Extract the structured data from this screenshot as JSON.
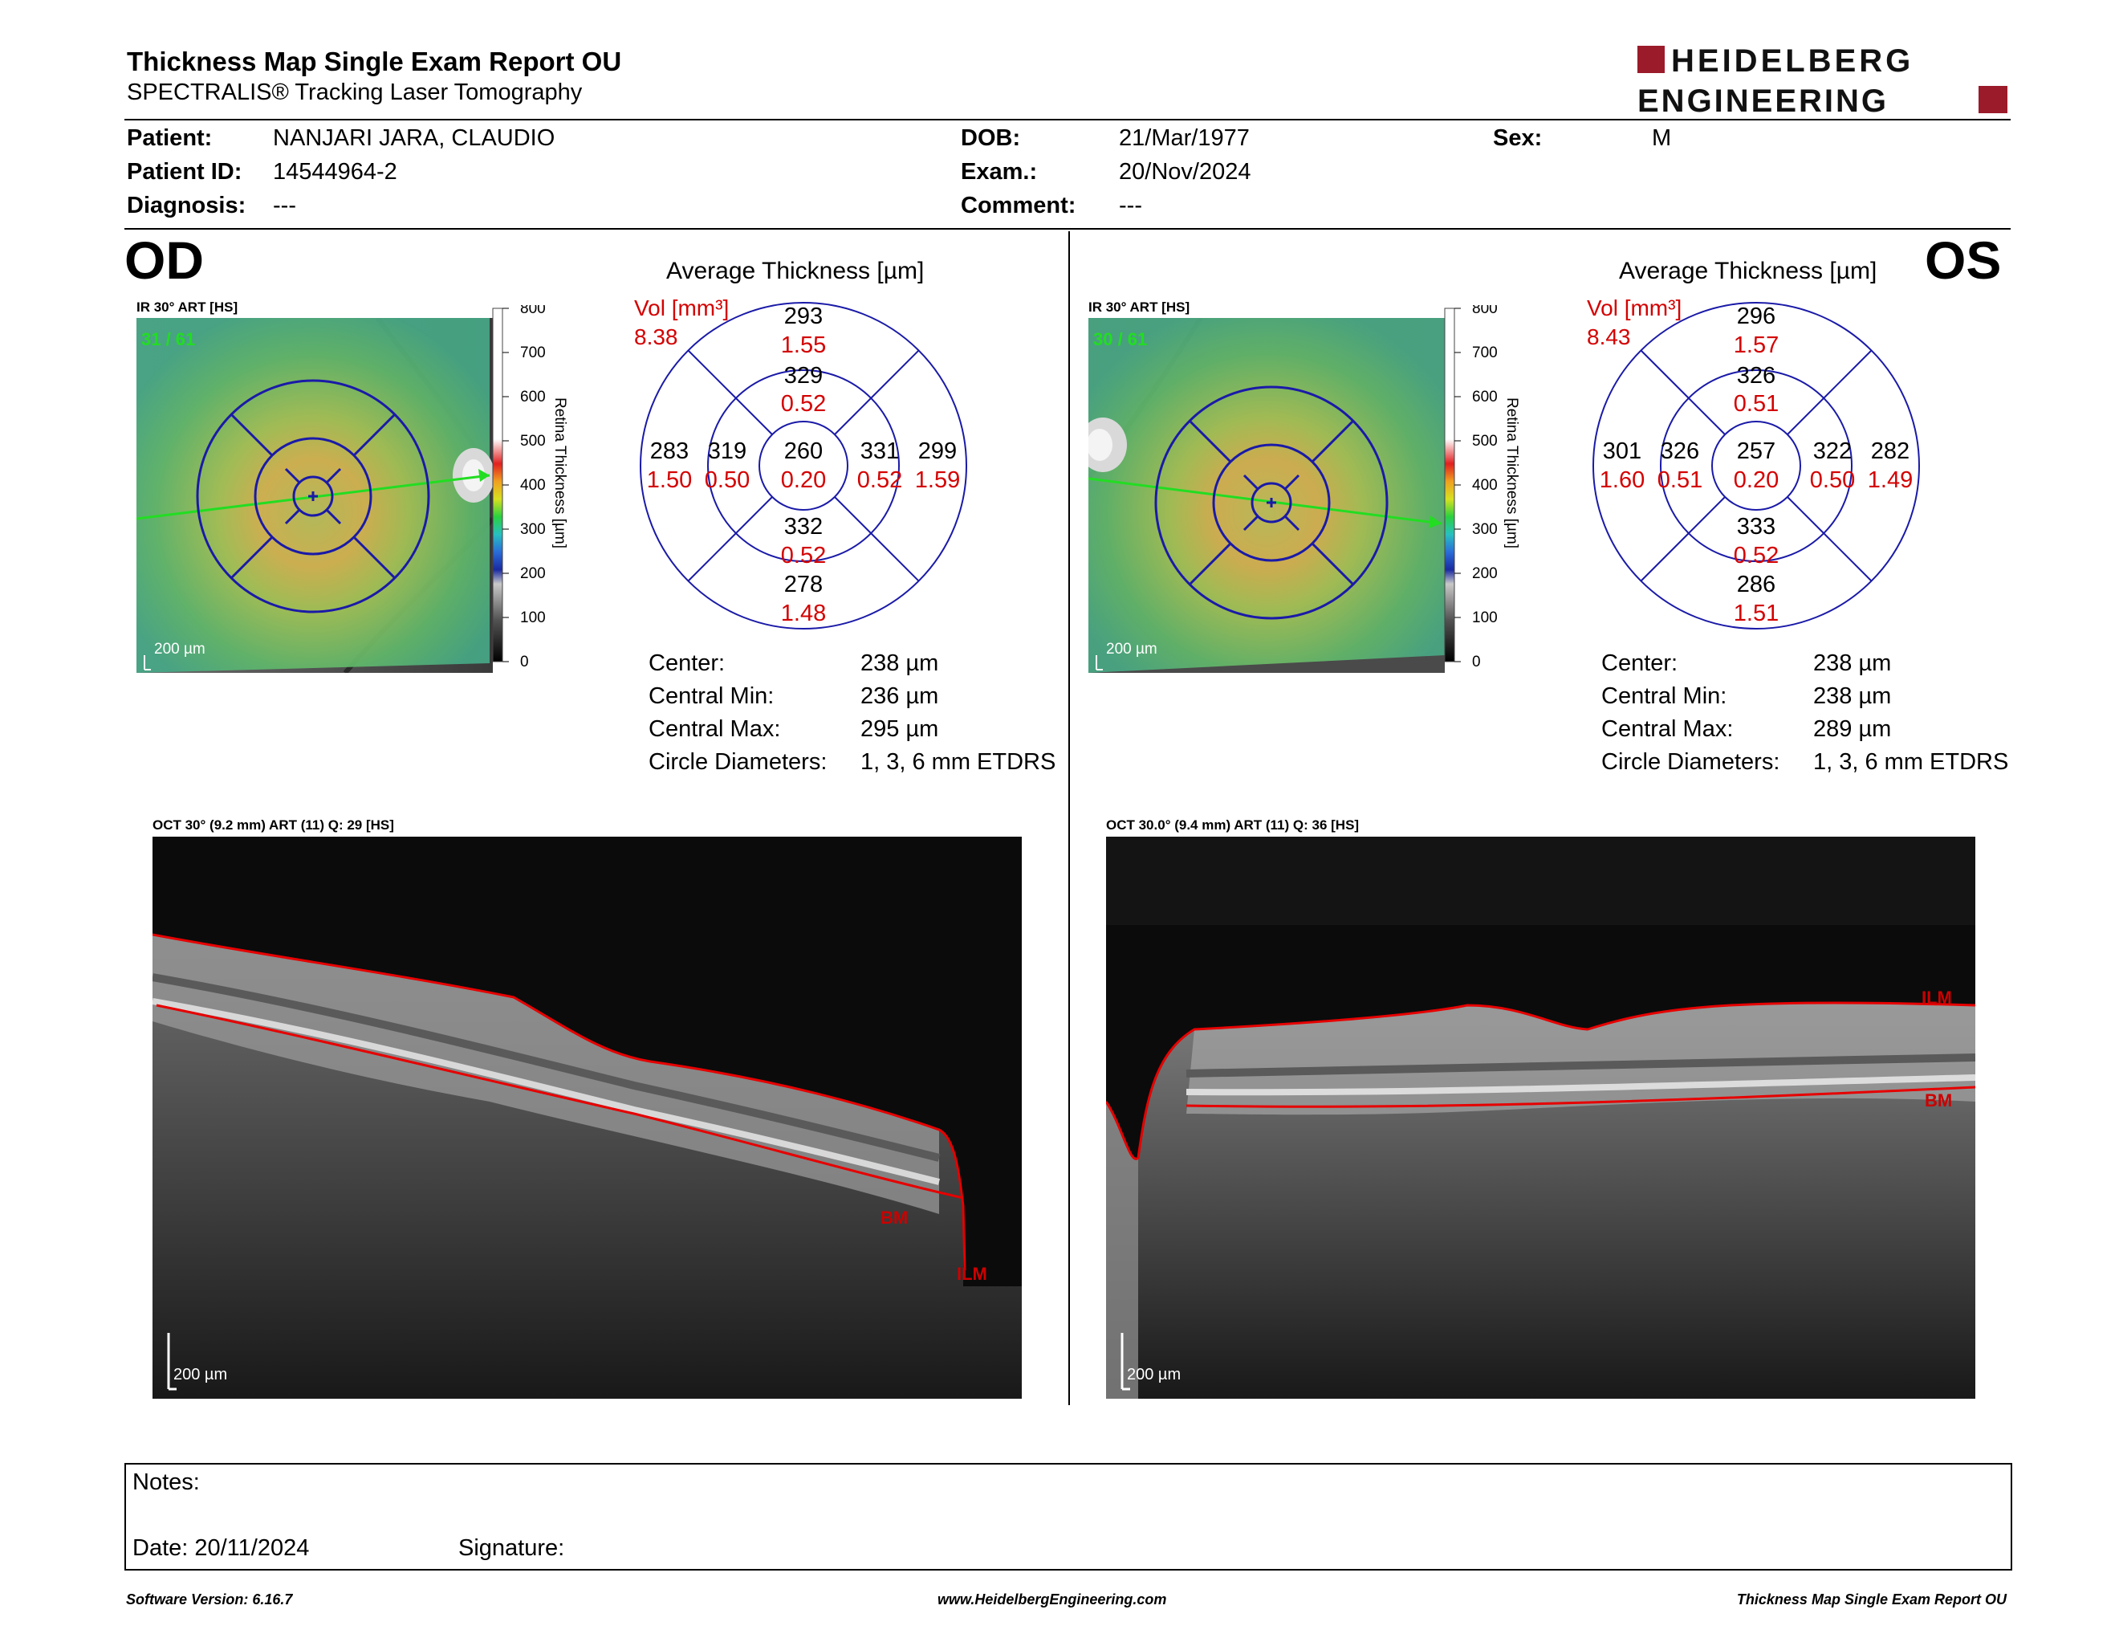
{
  "header": {
    "title": "Thickness Map Single Exam Report OU",
    "subtitle": "SPECTRALIS® Tracking Laser Tomography",
    "logo_line1": "HEIDELBERG",
    "logo_line2": "ENGINEERING"
  },
  "patient": {
    "patient_label": "Patient:",
    "patient_value": "NANJARI JARA, CLAUDIO",
    "id_label": "Patient ID:",
    "id_value": "14544964-2",
    "diag_label": "Diagnosis:",
    "diag_value": "---",
    "dob_label": "DOB:",
    "dob_value": "21/Mar/1977",
    "exam_label": "Exam.:",
    "exam_value": "20/Nov/2024",
    "comment_label": "Comment:",
    "comment_value": "---",
    "sex_label": "Sex:",
    "sex_value": "M"
  },
  "od": {
    "eye": "OD",
    "ir_label": "IR 30° ART [HS]",
    "ir_counter": "31 / 61",
    "scale_text": "200 µm",
    "colorbar_ticks": [
      "800",
      "700",
      "600",
      "500",
      "400",
      "300",
      "200",
      "100",
      "0"
    ],
    "colorbar_label": "Retina Thickness [µm]",
    "avg_title": "Average Thickness [µm]",
    "vol_label": "Vol [mm³]",
    "vol_value": "8.38",
    "etdrs": {
      "outer_sup": "293",
      "outer_sup_vol": "1.55",
      "inner_sup": "329",
      "inner_sup_vol": "0.52",
      "outer_temp": "283",
      "outer_temp_vol": "1.50",
      "inner_temp": "319",
      "inner_temp_vol": "0.50",
      "center": "260",
      "center_vol": "0.20",
      "inner_nas": "331",
      "inner_nas_vol": "0.52",
      "outer_nas": "299",
      "outer_nas_vol": "1.59",
      "inner_inf": "332",
      "inner_inf_vol": "0.52",
      "outer_inf": "278",
      "outer_inf_vol": "1.48"
    },
    "stats": [
      {
        "label": "Center:",
        "value": "238 µm"
      },
      {
        "label": "Central Min:",
        "value": "236 µm"
      },
      {
        "label": "Central Max:",
        "value": "295 µm"
      },
      {
        "label": "Circle Diameters:",
        "value": "1, 3, 6 mm ETDRS"
      }
    ],
    "oct_label": "OCT 30° (9.2 mm) ART (11) Q: 29 [HS]",
    "oct_ilm": "ILM",
    "oct_bm": "BM",
    "oct_scale": "200 µm"
  },
  "os": {
    "eye": "OS",
    "ir_label": "IR 30° ART [HS]",
    "ir_counter": "30 / 61",
    "scale_text": "200 µm",
    "colorbar_ticks": [
      "800",
      "700",
      "600",
      "500",
      "400",
      "300",
      "200",
      "100",
      "0"
    ],
    "colorbar_label": "Retina Thickness [µm]",
    "avg_title": "Average Thickness [µm]",
    "vol_label": "Vol [mm³]",
    "vol_value": "8.43",
    "etdrs": {
      "outer_sup": "296",
      "outer_sup_vol": "1.57",
      "inner_sup": "326",
      "inner_sup_vol": "0.51",
      "outer_temp": "301",
      "outer_temp_vol": "1.60",
      "inner_temp": "326",
      "inner_temp_vol": "0.51",
      "center": "257",
      "center_vol": "0.20",
      "inner_nas": "322",
      "inner_nas_vol": "0.50",
      "outer_nas": "282",
      "outer_nas_vol": "1.49",
      "inner_inf": "333",
      "inner_inf_vol": "0.52",
      "outer_inf": "286",
      "outer_inf_vol": "1.51"
    },
    "stats": [
      {
        "label": "Center:",
        "value": "238 µm"
      },
      {
        "label": "Central Min:",
        "value": "238 µm"
      },
      {
        "label": "Central Max:",
        "value": "289 µm"
      },
      {
        "label": "Circle Diameters:",
        "value": "1, 3, 6 mm ETDRS"
      }
    ],
    "oct_label": "OCT 30.0° (9.4 mm) ART (11) Q: 36 [HS]",
    "oct_ilm": "ILM",
    "oct_bm": "BM",
    "oct_scale": "200 µm"
  },
  "notes": {
    "notes_label": "Notes:",
    "date_label": "Date: 20/11/2024",
    "signature_label": "Signature:"
  },
  "footer": {
    "software": "Software Version: 6.16.7",
    "url": "www.HeidelbergEngineering.com",
    "report": "Thickness Map Single Exam Report OU"
  },
  "colors": {
    "red_text": "#d40000",
    "grid_blue": "#1a1aa8",
    "logo_red": "#9b1b2a",
    "scan_green": "#22dd22"
  }
}
